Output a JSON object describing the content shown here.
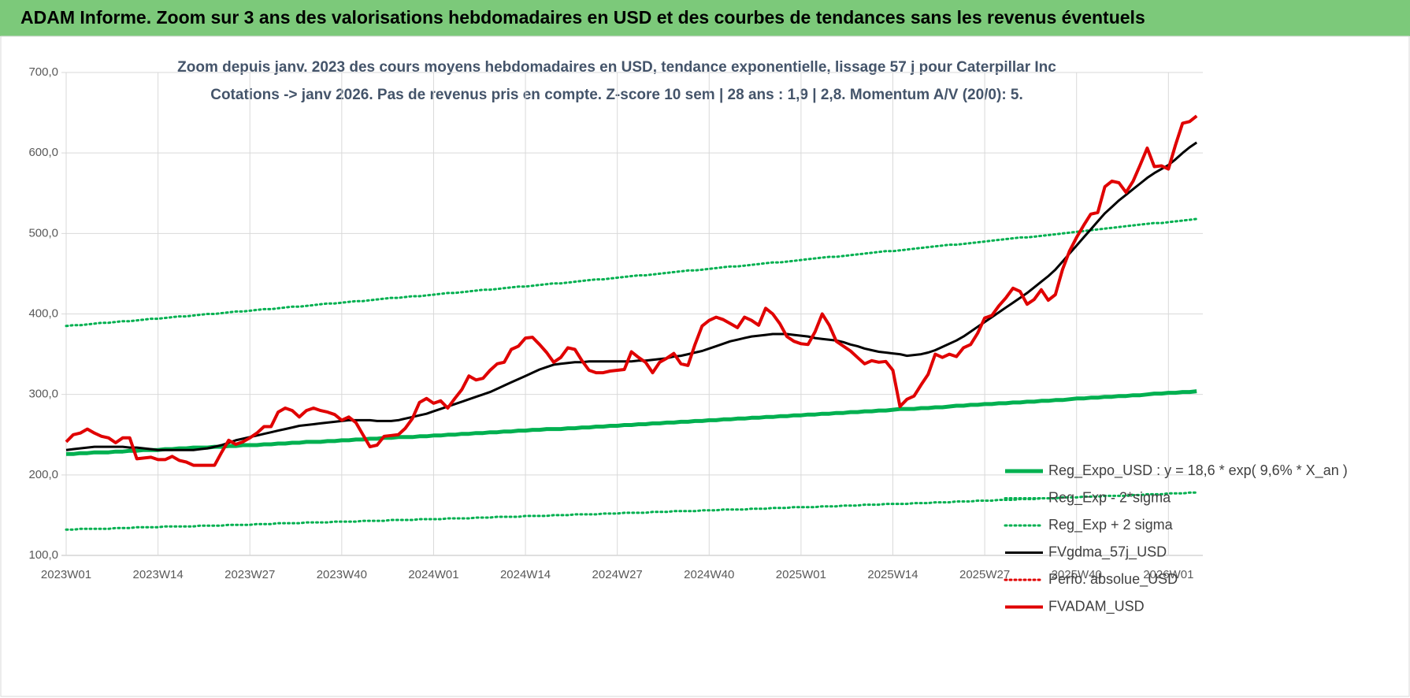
{
  "chart_data": {
    "type": "line",
    "title": "ADAM Informe. Zoom sur 3 ans des valorisations hebdomadaires en USD et des courbes de tendances sans les revenus éventuels",
    "subtitle": [
      "Zoom depuis janv. 2023 des cours moyens hebdomadaires en USD, tendance exponentielle, lissage 57 j pour Caterpillar Inc",
      "Cotations -> janv 2026. Pas de revenus pris en compte. Z-score 10 sem | 28 ans : 1,9 | 2,8. Momentum A/V (20/0): 5."
    ],
    "categories": [
      "2023W01",
      null,
      null,
      null,
      null,
      null,
      null,
      null,
      null,
      null,
      null,
      null,
      null,
      "2023W14",
      null,
      null,
      null,
      null,
      null,
      null,
      null,
      null,
      null,
      null,
      null,
      null,
      "2023W27",
      null,
      null,
      null,
      null,
      null,
      null,
      null,
      null,
      null,
      null,
      null,
      null,
      "2023W40",
      null,
      null,
      null,
      null,
      null,
      null,
      null,
      null,
      null,
      null,
      null,
      null,
      "2024W01",
      null,
      null,
      null,
      null,
      null,
      null,
      null,
      null,
      null,
      null,
      null,
      null,
      "2024W14",
      null,
      null,
      null,
      null,
      null,
      null,
      null,
      null,
      null,
      null,
      null,
      null,
      "2024W27",
      null,
      null,
      null,
      null,
      null,
      null,
      null,
      null,
      null,
      null,
      null,
      null,
      "2024W40",
      null,
      null,
      null,
      null,
      null,
      null,
      null,
      null,
      null,
      null,
      null,
      null,
      "2025W01",
      null,
      null,
      null,
      null,
      null,
      null,
      null,
      null,
      null,
      null,
      null,
      null,
      "2025W14",
      null,
      null,
      null,
      null,
      null,
      null,
      null,
      null,
      null,
      null,
      null,
      null,
      "2025W27",
      null,
      null,
      null,
      null,
      null,
      null,
      null,
      null,
      null,
      null,
      null,
      null,
      "2025W40",
      null,
      null,
      null,
      null,
      null,
      null,
      null,
      null,
      null,
      null,
      null,
      null,
      "2026W01",
      null,
      null,
      null,
      null
    ],
    "ylim": [
      100,
      700
    ],
    "yticks": [
      {
        "value": 100,
        "label": "100,0"
      },
      {
        "value": 200,
        "label": "200,0"
      },
      {
        "value": 300,
        "label": "300,0"
      },
      {
        "value": 400,
        "label": "400,0"
      },
      {
        "value": 500,
        "label": "500,0"
      },
      {
        "value": 600,
        "label": "600,0"
      },
      {
        "value": 700,
        "label": "700,0"
      }
    ],
    "grid": true,
    "series": [
      {
        "name": "Reg_Expo_USD : y = 18,6 * exp( 9,6% *  X_an )",
        "color": "#00b050",
        "style": "solid",
        "width": 5,
        "values": [
          226,
          226,
          227,
          227,
          228,
          228,
          228,
          229,
          229,
          230,
          230,
          231,
          231,
          231,
          232,
          232,
          233,
          233,
          234,
          234,
          234,
          235,
          235,
          236,
          236,
          237,
          237,
          237,
          238,
          238,
          239,
          239,
          240,
          240,
          241,
          241,
          241,
          242,
          242,
          243,
          243,
          244,
          244,
          245,
          245,
          246,
          246,
          247,
          247,
          247,
          248,
          248,
          249,
          249,
          250,
          250,
          251,
          251,
          252,
          252,
          253,
          253,
          254,
          254,
          255,
          255,
          256,
          256,
          257,
          257,
          257,
          258,
          258,
          259,
          259,
          260,
          260,
          261,
          261,
          262,
          262,
          263,
          263,
          264,
          264,
          265,
          265,
          266,
          266,
          267,
          267,
          268,
          268,
          269,
          269,
          270,
          270,
          271,
          271,
          272,
          272,
          273,
          273,
          274,
          274,
          275,
          275,
          276,
          276,
          277,
          277,
          278,
          278,
          279,
          279,
          280,
          280,
          281,
          282,
          282,
          282,
          283,
          283,
          284,
          284,
          285,
          286,
          286,
          287,
          287,
          288,
          288,
          289,
          289,
          290,
          290,
          291,
          291,
          292,
          292,
          293,
          293,
          294,
          295,
          295,
          296,
          296,
          297,
          297,
          298,
          298,
          299,
          299,
          300,
          301,
          301,
          302,
          302,
          303,
          303,
          304
        ]
      },
      {
        "name": "Reg_Exp - 2*sigma",
        "color": "#00b050",
        "style": "dotted",
        "width": 3,
        "values": [
          132,
          132,
          133,
          133,
          133,
          133,
          133,
          134,
          134,
          134,
          135,
          135,
          135,
          135,
          136,
          136,
          136,
          136,
          136,
          137,
          137,
          137,
          137,
          138,
          138,
          138,
          138,
          139,
          139,
          139,
          140,
          140,
          140,
          140,
          141,
          141,
          141,
          141,
          142,
          142,
          142,
          142,
          143,
          143,
          143,
          143,
          144,
          144,
          144,
          144,
          145,
          145,
          145,
          145,
          146,
          146,
          146,
          146,
          147,
          147,
          147,
          148,
          148,
          148,
          148,
          149,
          149,
          149,
          149,
          150,
          150,
          150,
          151,
          151,
          151,
          151,
          152,
          152,
          152,
          153,
          153,
          153,
          153,
          154,
          154,
          154,
          155,
          155,
          155,
          155,
          156,
          156,
          156,
          157,
          157,
          157,
          157,
          158,
          158,
          158,
          159,
          159,
          159,
          160,
          160,
          160,
          160,
          161,
          161,
          161,
          162,
          162,
          162,
          163,
          163,
          163,
          164,
          164,
          164,
          164,
          165,
          165,
          165,
          166,
          166,
          166,
          167,
          167,
          167,
          168,
          168,
          168,
          169,
          169,
          169,
          170,
          170,
          170,
          171,
          171,
          171,
          172,
          172,
          172,
          173,
          173,
          173,
          174,
          174,
          174,
          174,
          175,
          175,
          176,
          176,
          176,
          177,
          177,
          177,
          178,
          178
        ]
      },
      {
        "name": "Reg_Exp + 2 sigma",
        "color": "#00b050",
        "style": "dotted",
        "width": 3,
        "values": [
          385,
          386,
          386,
          387,
          388,
          389,
          389,
          390,
          391,
          391,
          392,
          393,
          394,
          394,
          395,
          396,
          397,
          397,
          398,
          399,
          400,
          400,
          401,
          402,
          403,
          403,
          404,
          405,
          406,
          406,
          407,
          408,
          409,
          409,
          410,
          411,
          412,
          413,
          413,
          414,
          415,
          416,
          416,
          417,
          418,
          419,
          420,
          420,
          421,
          422,
          422,
          423,
          424,
          425,
          426,
          426,
          427,
          428,
          429,
          430,
          430,
          431,
          432,
          433,
          434,
          434,
          435,
          436,
          437,
          438,
          438,
          439,
          440,
          441,
          442,
          443,
          443,
          444,
          445,
          446,
          447,
          448,
          448,
          449,
          450,
          451,
          452,
          453,
          454,
          454,
          455,
          456,
          457,
          458,
          459,
          459,
          460,
          461,
          462,
          463,
          464,
          464,
          465,
          466,
          467,
          468,
          469,
          470,
          471,
          471,
          472,
          473,
          474,
          475,
          476,
          477,
          478,
          478,
          479,
          480,
          481,
          482,
          483,
          484,
          485,
          486,
          486,
          487,
          488,
          489,
          490,
          491,
          492,
          493,
          494,
          495,
          495,
          496,
          497,
          498,
          499,
          500,
          501,
          502,
          503,
          504,
          505,
          506,
          507,
          508,
          509,
          510,
          511,
          512,
          513,
          513,
          514,
          515,
          516,
          517,
          518
        ]
      },
      {
        "name": "FVgdma_57j_USD",
        "color": "#000000",
        "style": "solid",
        "width": 3,
        "values": [
          231,
          232,
          233,
          234,
          235,
          235,
          235,
          235,
          235,
          234,
          234,
          233,
          232,
          231,
          231,
          231,
          231,
          231,
          231,
          232,
          233,
          235,
          237,
          240,
          243,
          245,
          247,
          249,
          251,
          253,
          255,
          257,
          259,
          261,
          262,
          263,
          264,
          265,
          266,
          267,
          268,
          268,
          268,
          268,
          267,
          267,
          267,
          268,
          270,
          272,
          274,
          276,
          279,
          282,
          285,
          288,
          291,
          294,
          297,
          300,
          303,
          307,
          311,
          315,
          319,
          323,
          327,
          331,
          334,
          337,
          338,
          339,
          340,
          340,
          341,
          341,
          341,
          341,
          341,
          341,
          341,
          342,
          342,
          343,
          344,
          345,
          347,
          348,
          350,
          352,
          354,
          357,
          360,
          363,
          366,
          368,
          370,
          372,
          373,
          374,
          375,
          375,
          375,
          374,
          373,
          372,
          370,
          369,
          368,
          367,
          365,
          362,
          360,
          357,
          355,
          353,
          352,
          351,
          350,
          348,
          349,
          350,
          352,
          355,
          359,
          363,
          367,
          372,
          378,
          384,
          390,
          396,
          402,
          408,
          414,
          420,
          426,
          433,
          440,
          447,
          455,
          465,
          475,
          485,
          495,
          505,
          515,
          525,
          533,
          541,
          548,
          555,
          562,
          569,
          575,
          580,
          585,
          592,
          600,
          607,
          613
        ]
      },
      {
        "name": "Perfo. absolue_USD",
        "color": "#e00000",
        "style": "dotted",
        "width": 3
      },
      {
        "name": "FVADAM_USD",
        "color": "#e00000",
        "style": "solid",
        "width": 4,
        "values": [
          241,
          250,
          252,
          257,
          252,
          248,
          246,
          240,
          246,
          246,
          220,
          221,
          222,
          219,
          219,
          223,
          218,
          216,
          212,
          212,
          212,
          212,
          228,
          243,
          238,
          241,
          246,
          252,
          260,
          260,
          278,
          283,
          280,
          272,
          280,
          283,
          280,
          278,
          275,
          268,
          272,
          265,
          250,
          235,
          237,
          248,
          249,
          250,
          258,
          270,
          290,
          295,
          289,
          292,
          283,
          295,
          306,
          323,
          318,
          320,
          330,
          338,
          340,
          356,
          360,
          370,
          371,
          362,
          352,
          340,
          346,
          358,
          356,
          342,
          330,
          327,
          327,
          329,
          330,
          331,
          353,
          346,
          340,
          327,
          340,
          345,
          351,
          338,
          336,
          362,
          385,
          392,
          396,
          393,
          388,
          383,
          396,
          392,
          386,
          407,
          400,
          388,
          372,
          366,
          363,
          362,
          378,
          400,
          386,
          366,
          360,
          354,
          346,
          338,
          342,
          340,
          341,
          330,
          285,
          294,
          298,
          312,
          325,
          350,
          346,
          350,
          347,
          358,
          362,
          376,
          395,
          398,
          410,
          420,
          432,
          428,
          412,
          418,
          430,
          417,
          424,
          455,
          478,
          495,
          510,
          524,
          526,
          558,
          565,
          563,
          551,
          565,
          585,
          606,
          583,
          584,
          580,
          610,
          637,
          639,
          646
        ]
      }
    ]
  }
}
